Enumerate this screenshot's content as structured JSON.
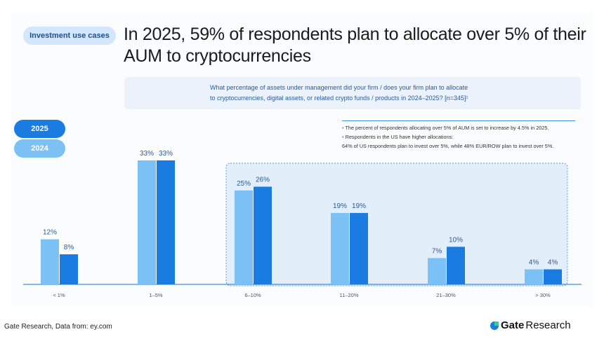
{
  "tag": "Investment use cases",
  "title": "In 2025, 59% of respondents plan to allocate over 5% of their AUM to cryptocurrencies",
  "question": {
    "line1": "What percentage of assets under management did your firm / does your firm plan to allocate",
    "line2": "to cryptocurrencies, digital assets, or related crypto funds / products in 2024–2025? [n=345]¹"
  },
  "notes": {
    "n1": "The percent of respondents allocating over 5% of AUM is set to increase by 4.5% in 2025.",
    "n2": "Respondents in the US have higher allocations:",
    "n3": "64% of US respondents plan to invest over 5%, while 48% EUR/ROW plan to invest over 5%."
  },
  "footer": {
    "source": "Gate Research, Data from:  ey.com",
    "brand_bold": "Gate",
    "brand": "Research"
  },
  "colors": {
    "s2024": "#7cc1f5",
    "s2025": "#1a7be0"
  },
  "chart_data": {
    "type": "bar",
    "categories": [
      "< 1%",
      "1–5%",
      "6–10%",
      "11–20%",
      "21–30%",
      "> 30%"
    ],
    "series": [
      {
        "name": "2024",
        "values": [
          12,
          33,
          25,
          19,
          7,
          4
        ]
      },
      {
        "name": "2025",
        "values": [
          8,
          33,
          26,
          19,
          10,
          4
        ]
      }
    ],
    "ylim": [
      0,
      35
    ],
    "legend": "left",
    "grid": false,
    "highlight_categories": [
      "6–10%",
      "11–20%",
      "21–30%",
      "> 30%"
    ]
  }
}
